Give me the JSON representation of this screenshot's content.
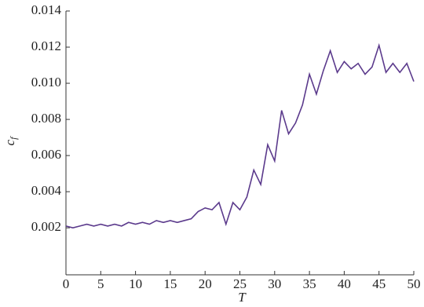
{
  "chart_data": {
    "type": "line",
    "xlabel": "T",
    "ylabel": {
      "text": "c",
      "subscript": "f"
    },
    "x": [
      0,
      1,
      2,
      3,
      4,
      5,
      6,
      7,
      8,
      9,
      10,
      11,
      12,
      13,
      14,
      15,
      16,
      17,
      18,
      19,
      20,
      21,
      22,
      23,
      24,
      25,
      26,
      27,
      28,
      29,
      30,
      31,
      32,
      33,
      34,
      35,
      36,
      37,
      38,
      39,
      40,
      41,
      42,
      43,
      44,
      45,
      46,
      47,
      48,
      49,
      50
    ],
    "series": [
      {
        "color": "#5b3a8c",
        "values": [
          0.0021,
          0.002,
          0.0021,
          0.0022,
          0.0021,
          0.0022,
          0.0021,
          0.0022,
          0.0021,
          0.0023,
          0.0022,
          0.0023,
          0.0022,
          0.0024,
          0.0023,
          0.0024,
          0.0023,
          0.0024,
          0.0025,
          0.0029,
          0.0031,
          0.003,
          0.0034,
          0.0022,
          0.0034,
          0.003,
          0.0037,
          0.0052,
          0.0044,
          0.0066,
          0.0057,
          0.0085,
          0.0072,
          0.0078,
          0.0088,
          0.0105,
          0.0094,
          0.0107,
          0.0118,
          0.0106,
          0.0112,
          0.0108,
          0.0111,
          0.0105,
          0.0109,
          0.0121,
          0.0106,
          0.0111,
          0.0106,
          0.0111,
          0.0101
        ]
      }
    ],
    "xlim": [
      0,
      50
    ],
    "xticks": [
      0,
      5,
      10,
      15,
      20,
      25,
      30,
      35,
      40,
      45,
      50
    ],
    "ylim": [
      -0.0006,
      0.014
    ],
    "yticks": [
      0.002,
      0.004,
      0.006,
      0.008,
      {
        "value": 0.01,
        "label": "0.010"
      },
      0.012,
      0.014
    ],
    "grid": false
  }
}
